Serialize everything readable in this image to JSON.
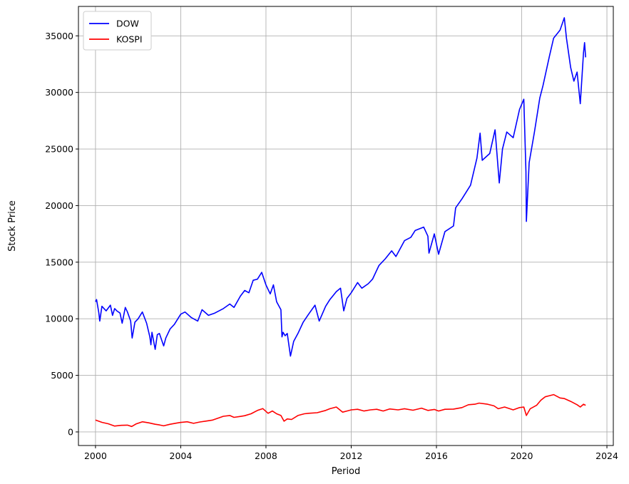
{
  "chart_data": {
    "type": "line",
    "title": "",
    "xlabel": "Period",
    "ylabel": "Stock Price",
    "xlim": [
      1999.2,
      2024.3
    ],
    "ylim": [
      -1200,
      37600
    ],
    "xticks": [
      2000,
      2004,
      2008,
      2012,
      2016,
      2020,
      2024
    ],
    "yticks": [
      0,
      5000,
      10000,
      15000,
      20000,
      25000,
      30000,
      35000
    ],
    "grid": true,
    "legend_position": "upper left",
    "series": [
      {
        "name": "DOW",
        "color": "#0000ff",
        "points": [
          [
            2000.0,
            11500
          ],
          [
            2000.05,
            11700
          ],
          [
            2000.15,
            10600
          ],
          [
            2000.2,
            9800
          ],
          [
            2000.3,
            11100
          ],
          [
            2000.5,
            10700
          ],
          [
            2000.7,
            11200
          ],
          [
            2000.8,
            10300
          ],
          [
            2000.9,
            10900
          ],
          [
            2001.0,
            10700
          ],
          [
            2001.15,
            10500
          ],
          [
            2001.25,
            9600
          ],
          [
            2001.4,
            11000
          ],
          [
            2001.5,
            10600
          ],
          [
            2001.65,
            9800
          ],
          [
            2001.72,
            8300
          ],
          [
            2001.85,
            9700
          ],
          [
            2002.0,
            10000
          ],
          [
            2002.2,
            10600
          ],
          [
            2002.4,
            9600
          ],
          [
            2002.55,
            8400
          ],
          [
            2002.6,
            7700
          ],
          [
            2002.65,
            8800
          ],
          [
            2002.8,
            7300
          ],
          [
            2002.9,
            8600
          ],
          [
            2003.0,
            8700
          ],
          [
            2003.2,
            7600
          ],
          [
            2003.3,
            8300
          ],
          [
            2003.5,
            9100
          ],
          [
            2003.7,
            9500
          ],
          [
            2004.0,
            10400
          ],
          [
            2004.2,
            10600
          ],
          [
            2004.5,
            10100
          ],
          [
            2004.8,
            9800
          ],
          [
            2005.0,
            10800
          ],
          [
            2005.3,
            10300
          ],
          [
            2005.6,
            10500
          ],
          [
            2006.0,
            10900
          ],
          [
            2006.3,
            11300
          ],
          [
            2006.5,
            11000
          ],
          [
            2006.8,
            12000
          ],
          [
            2007.0,
            12500
          ],
          [
            2007.2,
            12300
          ],
          [
            2007.4,
            13400
          ],
          [
            2007.6,
            13500
          ],
          [
            2007.8,
            14100
          ],
          [
            2008.0,
            13000
          ],
          [
            2008.2,
            12200
          ],
          [
            2008.35,
            13000
          ],
          [
            2008.5,
            11500
          ],
          [
            2008.7,
            10800
          ],
          [
            2008.75,
            8400
          ],
          [
            2008.8,
            8800
          ],
          [
            2008.9,
            8500
          ],
          [
            2009.0,
            8700
          ],
          [
            2009.15,
            6700
          ],
          [
            2009.3,
            8000
          ],
          [
            2009.5,
            8700
          ],
          [
            2009.75,
            9700
          ],
          [
            2010.0,
            10400
          ],
          [
            2010.3,
            11200
          ],
          [
            2010.5,
            9800
          ],
          [
            2010.8,
            11100
          ],
          [
            2011.0,
            11700
          ],
          [
            2011.3,
            12400
          ],
          [
            2011.5,
            12700
          ],
          [
            2011.65,
            10700
          ],
          [
            2011.8,
            11800
          ],
          [
            2012.0,
            12300
          ],
          [
            2012.3,
            13200
          ],
          [
            2012.5,
            12700
          ],
          [
            2012.8,
            13100
          ],
          [
            2013.0,
            13500
          ],
          [
            2013.3,
            14700
          ],
          [
            2013.6,
            15300
          ],
          [
            2013.9,
            16000
          ],
          [
            2014.1,
            15500
          ],
          [
            2014.5,
            16900
          ],
          [
            2014.8,
            17200
          ],
          [
            2015.0,
            17800
          ],
          [
            2015.4,
            18100
          ],
          [
            2015.6,
            17300
          ],
          [
            2015.65,
            15800
          ],
          [
            2015.9,
            17500
          ],
          [
            2016.1,
            15700
          ],
          [
            2016.4,
            17700
          ],
          [
            2016.8,
            18200
          ],
          [
            2016.9,
            19800
          ],
          [
            2017.2,
            20600
          ],
          [
            2017.6,
            21800
          ],
          [
            2017.9,
            24200
          ],
          [
            2018.05,
            26400
          ],
          [
            2018.15,
            24000
          ],
          [
            2018.5,
            24600
          ],
          [
            2018.75,
            26700
          ],
          [
            2018.95,
            22000
          ],
          [
            2019.1,
            25000
          ],
          [
            2019.3,
            26500
          ],
          [
            2019.6,
            26000
          ],
          [
            2019.9,
            28500
          ],
          [
            2020.1,
            29400
          ],
          [
            2020.2,
            23000
          ],
          [
            2020.22,
            18600
          ],
          [
            2020.35,
            23800
          ],
          [
            2020.6,
            26500
          ],
          [
            2020.85,
            29500
          ],
          [
            2021.0,
            30600
          ],
          [
            2021.3,
            33200
          ],
          [
            2021.5,
            34800
          ],
          [
            2021.8,
            35500
          ],
          [
            2022.0,
            36600
          ],
          [
            2022.1,
            34800
          ],
          [
            2022.3,
            32200
          ],
          [
            2022.45,
            31000
          ],
          [
            2022.6,
            31800
          ],
          [
            2022.75,
            29000
          ],
          [
            2022.9,
            33500
          ],
          [
            2022.95,
            34400
          ],
          [
            2023.0,
            33100
          ]
        ]
      },
      {
        "name": "KOSPI",
        "color": "#ff0000",
        "points": [
          [
            2000.0,
            1050
          ],
          [
            2000.3,
            850
          ],
          [
            2000.6,
            720
          ],
          [
            2000.9,
            520
          ],
          [
            2001.2,
            580
          ],
          [
            2001.5,
            600
          ],
          [
            2001.7,
            480
          ],
          [
            2001.9,
            700
          ],
          [
            2002.2,
            900
          ],
          [
            2002.5,
            800
          ],
          [
            2002.8,
            680
          ],
          [
            2003.0,
            620
          ],
          [
            2003.2,
            540
          ],
          [
            2003.5,
            680
          ],
          [
            2003.8,
            780
          ],
          [
            2004.0,
            840
          ],
          [
            2004.3,
            900
          ],
          [
            2004.6,
            760
          ],
          [
            2004.9,
            880
          ],
          [
            2005.2,
            960
          ],
          [
            2005.5,
            1050
          ],
          [
            2005.8,
            1250
          ],
          [
            2006.0,
            1380
          ],
          [
            2006.3,
            1450
          ],
          [
            2006.5,
            1290
          ],
          [
            2006.8,
            1370
          ],
          [
            2007.0,
            1430
          ],
          [
            2007.3,
            1600
          ],
          [
            2007.6,
            1900
          ],
          [
            2007.85,
            2060
          ],
          [
            2008.1,
            1650
          ],
          [
            2008.3,
            1850
          ],
          [
            2008.5,
            1600
          ],
          [
            2008.7,
            1450
          ],
          [
            2008.85,
            950
          ],
          [
            2009.0,
            1150
          ],
          [
            2009.2,
            1100
          ],
          [
            2009.5,
            1450
          ],
          [
            2009.8,
            1600
          ],
          [
            2010.0,
            1650
          ],
          [
            2010.4,
            1700
          ],
          [
            2010.8,
            1900
          ],
          [
            2011.0,
            2050
          ],
          [
            2011.3,
            2200
          ],
          [
            2011.6,
            1750
          ],
          [
            2011.8,
            1850
          ],
          [
            2012.0,
            1950
          ],
          [
            2012.3,
            2000
          ],
          [
            2012.6,
            1850
          ],
          [
            2012.9,
            1950
          ],
          [
            2013.2,
            2000
          ],
          [
            2013.5,
            1850
          ],
          [
            2013.8,
            2030
          ],
          [
            2014.2,
            1950
          ],
          [
            2014.5,
            2050
          ],
          [
            2014.9,
            1920
          ],
          [
            2015.3,
            2100
          ],
          [
            2015.6,
            1900
          ],
          [
            2015.9,
            1990
          ],
          [
            2016.1,
            1850
          ],
          [
            2016.4,
            2000
          ],
          [
            2016.8,
            2020
          ],
          [
            2017.2,
            2150
          ],
          [
            2017.5,
            2400
          ],
          [
            2017.8,
            2450
          ],
          [
            2018.0,
            2550
          ],
          [
            2018.4,
            2450
          ],
          [
            2018.7,
            2300
          ],
          [
            2018.9,
            2050
          ],
          [
            2019.2,
            2200
          ],
          [
            2019.6,
            1950
          ],
          [
            2019.9,
            2150
          ],
          [
            2020.1,
            2200
          ],
          [
            2020.22,
            1450
          ],
          [
            2020.4,
            2050
          ],
          [
            2020.7,
            2350
          ],
          [
            2020.9,
            2800
          ],
          [
            2021.1,
            3100
          ],
          [
            2021.3,
            3200
          ],
          [
            2021.5,
            3300
          ],
          [
            2021.8,
            3000
          ],
          [
            2022.0,
            2950
          ],
          [
            2022.3,
            2700
          ],
          [
            2022.6,
            2400
          ],
          [
            2022.75,
            2200
          ],
          [
            2022.9,
            2450
          ],
          [
            2023.0,
            2350
          ]
        ]
      }
    ]
  }
}
